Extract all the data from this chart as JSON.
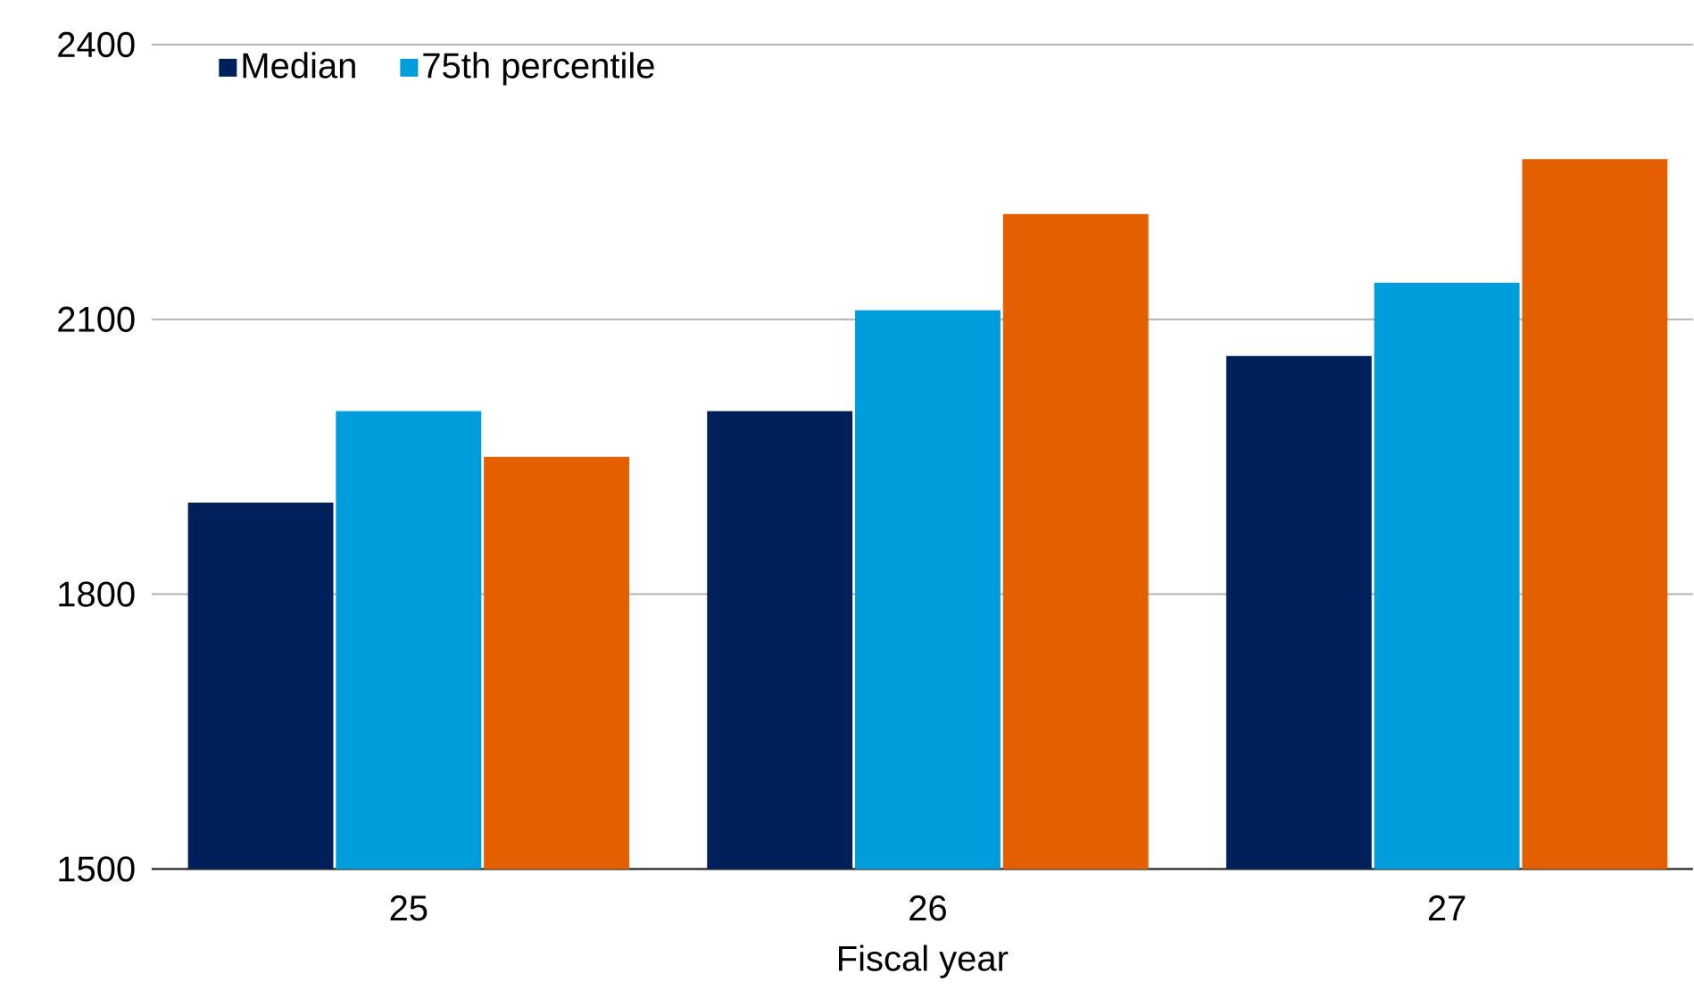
{
  "chart_data": {
    "type": "bar",
    "xlabel": "Fiscal year",
    "categories": [
      "25",
      "26",
      "27"
    ],
    "series": [
      {
        "name": "Median",
        "color": "#00205b",
        "values": [
          1900,
          2000,
          2060
        ]
      },
      {
        "name": "75th percentile",
        "color": "#009ddc",
        "values": [
          2000,
          2110,
          2140
        ]
      },
      {
        "color": "#e35f00",
        "values": [
          1950,
          2215,
          2275
        ]
      }
    ],
    "ylim": [
      1500,
      2400
    ],
    "yticks": [
      1500,
      1800,
      2100,
      2400
    ],
    "grid": "y",
    "legend": "top left"
  }
}
